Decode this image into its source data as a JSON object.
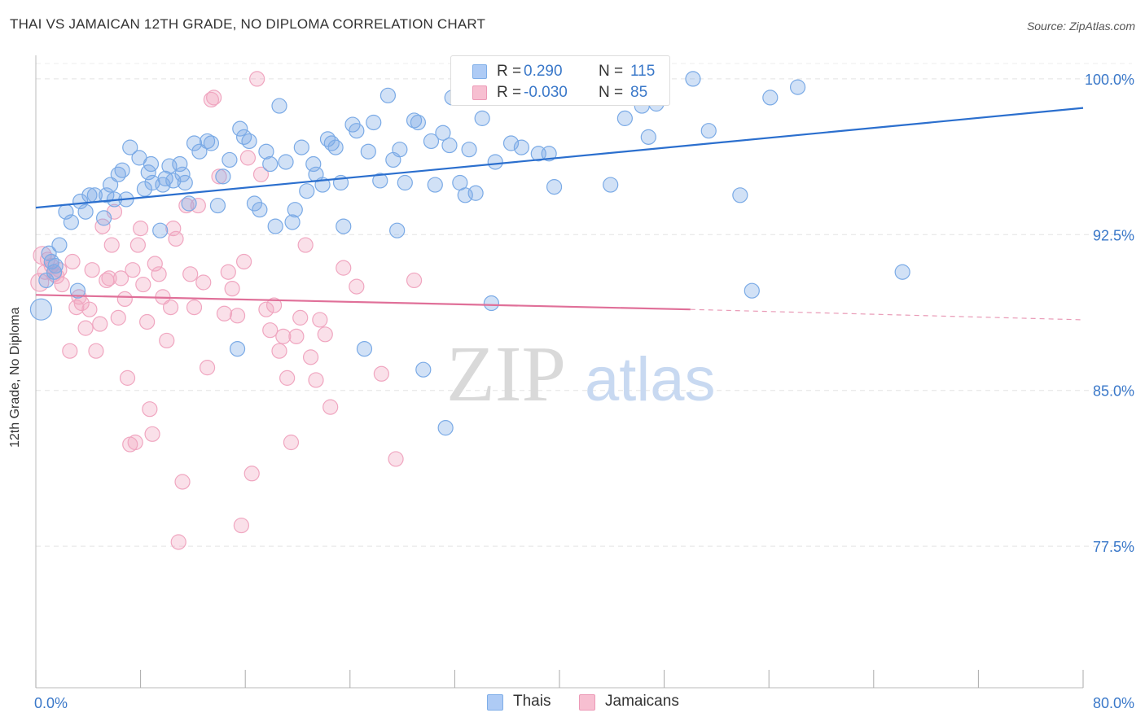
{
  "header": {
    "title": "THAI VS JAMAICAN 12TH GRADE, NO DIPLOMA CORRELATION CHART",
    "source": "Source: ZipAtlas.com"
  },
  "watermark": {
    "zip": "ZIP",
    "atlas": "atlas"
  },
  "legend": {
    "rows": [
      {
        "r_label": "R =",
        "r_value": "0.290",
        "n_label": "N =",
        "n_value": "115",
        "color": "#aecbf5",
        "border": "#7faee8",
        "text_color": "#3a78c9"
      },
      {
        "r_label": "R =",
        "r_value": "-0.030",
        "n_label": "N =",
        "n_value": "85",
        "color": "#f7bfd1",
        "border": "#ec9ab7",
        "text_color": "#3a78c9"
      }
    ]
  },
  "bottom_legend": {
    "thais": "Thais",
    "jamaicans": "Jamaicans"
  },
  "chart_data": {
    "type": "scatter",
    "title": "THAI VS JAMAICAN 12TH GRADE, NO DIPLOMA CORRELATION CHART",
    "xlabel": "",
    "ylabel": "12th Grade, No Diploma",
    "xlim": [
      0,
      80
    ],
    "ylim": [
      71.0,
      101.5
    ],
    "x_tick_labels": [
      "0.0%",
      "80.0%"
    ],
    "y_ticks": [
      77.5,
      85.0,
      92.5,
      100.0
    ],
    "y_tick_labels": [
      "77.5%",
      "85.0%",
      "92.5%",
      "100.0%"
    ],
    "grid": true,
    "colors": {
      "thais": "#7aaae6",
      "thais_line": "#2b6fce",
      "jamaicans": "#f0a6c0",
      "jamaicans_line": "#e07099",
      "tick_label": "#3a78c9"
    },
    "series": [
      {
        "name": "Thais",
        "trend": {
          "x": [
            0,
            80
          ],
          "y": [
            93.8,
            98.6
          ]
        },
        "points": [
          [
            0.4,
            88.9
          ],
          [
            0.8,
            90.3
          ],
          [
            1.0,
            91.6
          ],
          [
            1.2,
            91.2
          ],
          [
            1.4,
            90.7
          ],
          [
            1.8,
            92.0
          ],
          [
            2.3,
            93.6
          ],
          [
            2.7,
            93.1
          ],
          [
            3.2,
            89.8
          ],
          [
            3.4,
            94.1
          ],
          [
            3.8,
            93.6
          ],
          [
            4.1,
            94.4
          ],
          [
            4.5,
            94.4
          ],
          [
            5.2,
            93.3
          ],
          [
            5.4,
            94.4
          ],
          [
            5.7,
            94.9
          ],
          [
            6.0,
            94.2
          ],
          [
            6.3,
            95.4
          ],
          [
            6.6,
            95.6
          ],
          [
            6.9,
            94.2
          ],
          [
            7.2,
            96.7
          ],
          [
            7.9,
            96.2
          ],
          [
            8.3,
            94.7
          ],
          [
            8.6,
            95.5
          ],
          [
            8.8,
            95.9
          ],
          [
            8.9,
            95.0
          ],
          [
            9.5,
            92.7
          ],
          [
            9.7,
            94.9
          ],
          [
            9.9,
            95.2
          ],
          [
            10.2,
            95.8
          ],
          [
            10.5,
            95.1
          ],
          [
            11.0,
            95.9
          ],
          [
            11.2,
            95.4
          ],
          [
            11.4,
            95.0
          ],
          [
            11.7,
            94.0
          ],
          [
            12.1,
            96.9
          ],
          [
            12.5,
            96.5
          ],
          [
            13.1,
            97.0
          ],
          [
            13.4,
            96.9
          ],
          [
            13.9,
            93.9
          ],
          [
            14.3,
            95.3
          ],
          [
            14.8,
            96.1
          ],
          [
            15.4,
            87.0
          ],
          [
            15.6,
            97.6
          ],
          [
            15.9,
            97.2
          ],
          [
            16.3,
            97.0
          ],
          [
            16.7,
            94.0
          ],
          [
            17.1,
            93.7
          ],
          [
            17.6,
            96.5
          ],
          [
            17.9,
            95.9
          ],
          [
            18.3,
            92.9
          ],
          [
            18.6,
            98.7
          ],
          [
            19.1,
            96.0
          ],
          [
            19.6,
            93.1
          ],
          [
            19.8,
            93.7
          ],
          [
            20.3,
            96.7
          ],
          [
            20.7,
            94.6
          ],
          [
            21.2,
            95.9
          ],
          [
            21.4,
            95.4
          ],
          [
            21.9,
            94.9
          ],
          [
            22.3,
            97.1
          ],
          [
            22.6,
            96.9
          ],
          [
            22.9,
            96.7
          ],
          [
            23.3,
            95.0
          ],
          [
            23.5,
            92.9
          ],
          [
            24.2,
            97.8
          ],
          [
            24.5,
            97.5
          ],
          [
            25.1,
            87.0
          ],
          [
            25.4,
            96.5
          ],
          [
            25.8,
            97.9
          ],
          [
            26.3,
            95.1
          ],
          [
            26.9,
            99.2
          ],
          [
            27.3,
            96.1
          ],
          [
            27.6,
            92.7
          ],
          [
            27.8,
            96.6
          ],
          [
            28.2,
            95.0
          ],
          [
            28.9,
            98.0
          ],
          [
            29.2,
            97.9
          ],
          [
            29.6,
            86.0
          ],
          [
            30.2,
            97.0
          ],
          [
            30.5,
            94.9
          ],
          [
            31.1,
            97.4
          ],
          [
            31.3,
            83.2
          ],
          [
            31.6,
            96.8
          ],
          [
            31.8,
            99.1
          ],
          [
            32.4,
            95.0
          ],
          [
            32.8,
            94.4
          ],
          [
            33.1,
            96.6
          ],
          [
            33.6,
            94.5
          ],
          [
            34.1,
            98.1
          ],
          [
            34.8,
            89.2
          ],
          [
            35.1,
            96.0
          ],
          [
            36.0,
            99.1
          ],
          [
            36.3,
            96.9
          ],
          [
            37.1,
            96.7
          ],
          [
            38.4,
            96.4
          ],
          [
            39.2,
            96.4
          ],
          [
            39.6,
            94.8
          ],
          [
            41.1,
            100.0
          ],
          [
            42.1,
            99.5
          ],
          [
            43.9,
            94.9
          ],
          [
            45.0,
            98.1
          ],
          [
            46.3,
            98.7
          ],
          [
            46.6,
            99.1
          ],
          [
            46.8,
            97.2
          ],
          [
            47.4,
            98.8
          ],
          [
            47.8,
            99.2
          ],
          [
            50.2,
            100.0
          ],
          [
            51.4,
            97.5
          ],
          [
            53.8,
            94.4
          ],
          [
            54.7,
            89.8
          ],
          [
            56.1,
            99.1
          ],
          [
            58.2,
            99.6
          ],
          [
            66.2,
            90.7
          ],
          [
            1.5,
            91.0
          ]
        ]
      },
      {
        "name": "Jamaicans",
        "trend": {
          "x": [
            0,
            50
          ],
          "y": [
            89.6,
            88.9
          ]
        },
        "trend_dashed": {
          "x": [
            50,
            80
          ],
          "y": [
            88.9,
            88.4
          ]
        },
        "points": [
          [
            0.3,
            90.2
          ],
          [
            0.5,
            91.5
          ],
          [
            0.7,
            90.7
          ],
          [
            0.9,
            91.3
          ],
          [
            1.2,
            91.0
          ],
          [
            1.4,
            90.6
          ],
          [
            1.6,
            90.5
          ],
          [
            1.8,
            90.8
          ],
          [
            2.0,
            90.1
          ],
          [
            2.6,
            86.9
          ],
          [
            2.8,
            91.2
          ],
          [
            3.1,
            89.0
          ],
          [
            3.3,
            89.5
          ],
          [
            3.5,
            89.2
          ],
          [
            3.8,
            88.0
          ],
          [
            4.1,
            88.9
          ],
          [
            4.3,
            90.8
          ],
          [
            4.6,
            86.9
          ],
          [
            4.9,
            88.2
          ],
          [
            5.1,
            92.9
          ],
          [
            5.4,
            90.3
          ],
          [
            5.6,
            90.4
          ],
          [
            5.8,
            92.0
          ],
          [
            6.0,
            93.6
          ],
          [
            6.3,
            88.5
          ],
          [
            6.5,
            90.4
          ],
          [
            6.8,
            89.4
          ],
          [
            7.0,
            85.6
          ],
          [
            7.2,
            82.4
          ],
          [
            7.4,
            90.8
          ],
          [
            7.6,
            82.5
          ],
          [
            7.8,
            92.0
          ],
          [
            8.0,
            92.8
          ],
          [
            8.2,
            90.1
          ],
          [
            8.5,
            88.3
          ],
          [
            8.7,
            84.1
          ],
          [
            8.9,
            82.9
          ],
          [
            9.1,
            91.1
          ],
          [
            9.4,
            90.6
          ],
          [
            9.7,
            89.5
          ],
          [
            10.0,
            87.4
          ],
          [
            10.3,
            89.0
          ],
          [
            10.5,
            92.8
          ],
          [
            10.7,
            92.3
          ],
          [
            10.9,
            77.7
          ],
          [
            11.2,
            80.6
          ],
          [
            11.5,
            93.9
          ],
          [
            11.8,
            90.6
          ],
          [
            12.1,
            89.0
          ],
          [
            12.4,
            93.9
          ],
          [
            12.8,
            90.2
          ],
          [
            13.1,
            86.1
          ],
          [
            13.4,
            99.0
          ],
          [
            13.6,
            99.1
          ],
          [
            14.0,
            95.3
          ],
          [
            14.4,
            88.7
          ],
          [
            14.7,
            90.7
          ],
          [
            15.0,
            89.9
          ],
          [
            15.4,
            88.6
          ],
          [
            15.7,
            78.5
          ],
          [
            15.9,
            91.2
          ],
          [
            16.2,
            96.2
          ],
          [
            16.5,
            81.0
          ],
          [
            16.9,
            100.0
          ],
          [
            17.2,
            95.4
          ],
          [
            17.6,
            88.9
          ],
          [
            17.9,
            87.9
          ],
          [
            18.2,
            89.1
          ],
          [
            18.6,
            86.9
          ],
          [
            18.9,
            87.6
          ],
          [
            19.2,
            85.6
          ],
          [
            19.5,
            82.5
          ],
          [
            19.9,
            87.6
          ],
          [
            20.2,
            88.5
          ],
          [
            20.6,
            92.0
          ],
          [
            21.0,
            86.6
          ],
          [
            21.4,
            85.5
          ],
          [
            21.7,
            88.4
          ],
          [
            22.1,
            87.7
          ],
          [
            22.5,
            84.2
          ],
          [
            23.5,
            90.9
          ],
          [
            24.5,
            90.0
          ],
          [
            26.4,
            85.8
          ],
          [
            27.5,
            81.7
          ],
          [
            28.9,
            90.3
          ]
        ]
      }
    ]
  }
}
